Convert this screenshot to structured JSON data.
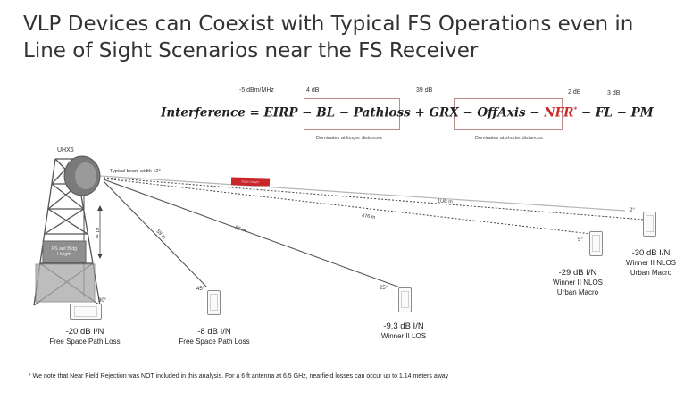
{
  "title": {
    "line1": "VLP Devices can Coexist with Typical FS Operations even in",
    "line2": "Line of Sight Scenarios near the FS Receiver"
  },
  "formula": {
    "lhs": "Interference = EIRP − BL",
    "pathloss": "− Pathloss",
    "plus_grx": "+ GRX",
    "offaxis": "− OffAxis − ",
    "nfr": "NFR",
    "nfr_star": "*",
    "tail": "− FL − PM",
    "values": {
      "eirp": "-5 dBm/MHz",
      "bl": "4 dB",
      "grx": "39 dB",
      "fl": "2 dB",
      "pm": "3 dB"
    },
    "notes": {
      "pathloss": "Dominates at longer distances",
      "offaxis": "Dominates at shorter distances"
    }
  },
  "tower": {
    "label": "UHX6",
    "height_label": "61 m",
    "box_label": "FS ant Bldg Height",
    "beam_label": "Typical beam width <2°",
    "red_bar_label": "Main beam"
  },
  "paths": {
    "d1": "59 m",
    "d2": "98 m",
    "d3": "476 m",
    "d4": "1UB m"
  },
  "devices": [
    {
      "angle": "90°",
      "result": "-20 dB I/N",
      "model": "Free Space Path Loss"
    },
    {
      "angle": "45°",
      "result": "-8 dB I/N",
      "model": "Free Space Path Loss"
    },
    {
      "angle": "25°",
      "result": "-9.3 dB I/N",
      "model": "Winner II LOS"
    },
    {
      "angle": "5°",
      "result": "-29 dB I/N",
      "model": "Winner II NLOS",
      "model2": "Urban Macro"
    },
    {
      "angle": "2°",
      "result": "-30 dB I/N",
      "model": "Winner II NLOS",
      "model2": "Urban Macro"
    }
  ],
  "footnote": {
    "star": "*",
    "text": " We note that Near Field Rejection was NOT included in this analysis.  For a 6 ft antenna at 6.5 GHz, nearfield losses can occur up to 1.14 meters away"
  },
  "colors": {
    "accent_red": "#cc2b2b",
    "box_border": "#b98c8c",
    "tower_gray": "#6d6d6d"
  }
}
